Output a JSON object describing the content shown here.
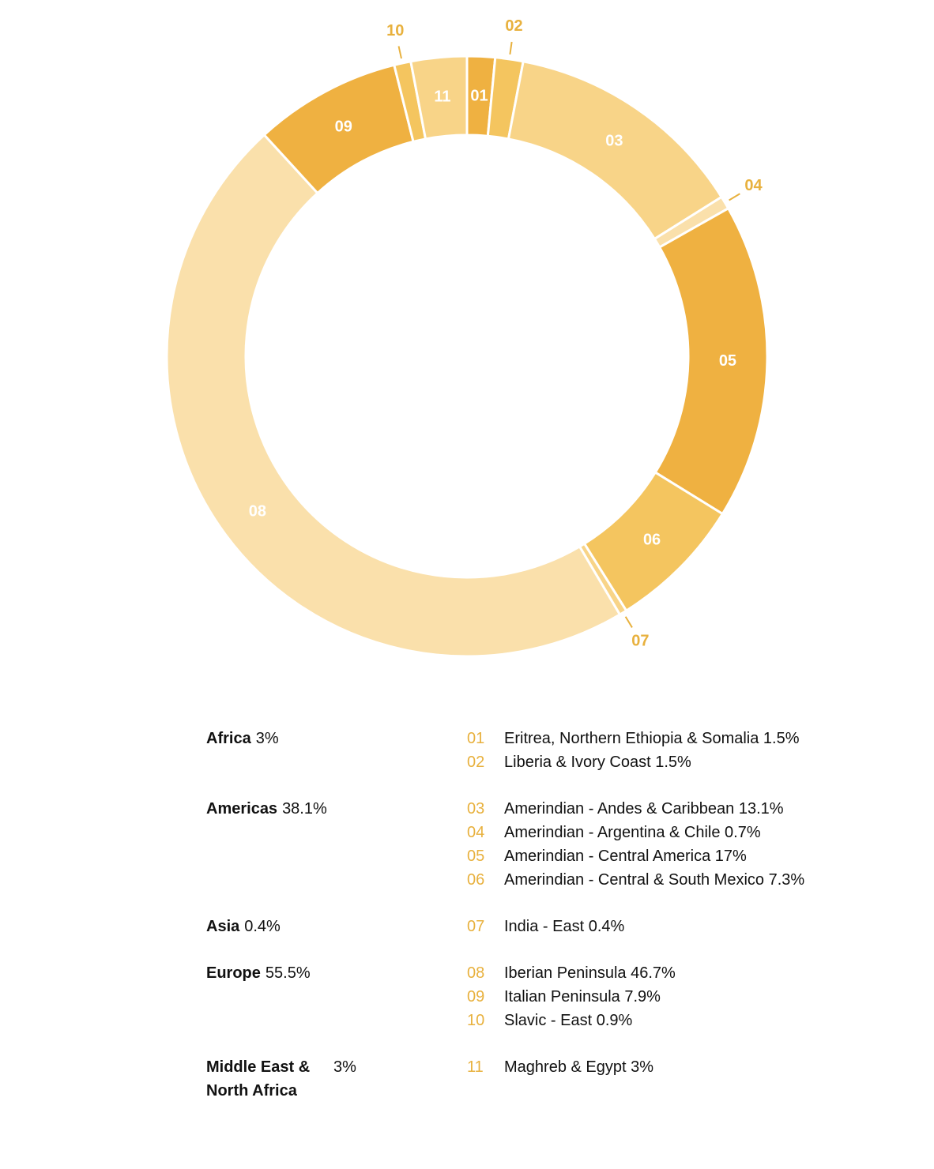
{
  "chart_data": {
    "type": "donut",
    "segments": [
      {
        "id": "01",
        "label": "Eritrea, Northern Ethiopia & Somalia",
        "value": 1.5,
        "display": "1.5%",
        "color": "#efb141"
      },
      {
        "id": "02",
        "label": "Liberia & Ivory Coast",
        "value": 1.5,
        "display": "1.5%",
        "color": "#f4c55f"
      },
      {
        "id": "03",
        "label": "Amerindian - Andes & Caribbean",
        "value": 13.1,
        "display": "13.1%",
        "color": "#f8d488"
      },
      {
        "id": "04",
        "label": "Amerindian - Argentina & Chile",
        "value": 0.7,
        "display": "0.7%",
        "color": "#fae0ab"
      },
      {
        "id": "05",
        "label": "Amerindian - Central America",
        "value": 17,
        "display": "17%",
        "color": "#efb141"
      },
      {
        "id": "06",
        "label": "Amerindian - Central & South Mexico",
        "value": 7.3,
        "display": "7.3%",
        "color": "#f4c55f"
      },
      {
        "id": "07",
        "label": "India - East",
        "value": 0.4,
        "display": "0.4%",
        "color": "#f8d488"
      },
      {
        "id": "08",
        "label": "Iberian Peninsula",
        "value": 46.7,
        "display": "46.7%",
        "color": "#fae0ab"
      },
      {
        "id": "09",
        "label": "Italian Peninsula",
        "value": 7.9,
        "display": "7.9%",
        "color": "#efb141"
      },
      {
        "id": "10",
        "label": "Slavic - East",
        "value": 0.9,
        "display": "0.9%",
        "color": "#f4c55f"
      },
      {
        "id": "11",
        "label": "Maghreb & Egypt",
        "value": 3,
        "display": "3%",
        "color": "#f8d488"
      }
    ],
    "external_labels": [
      "02",
      "04",
      "07",
      "10"
    ]
  },
  "colors": {
    "number_accent": "#e8b13e",
    "inside_label": "#ffffff",
    "separator": "#ffffff",
    "text": "#111111"
  },
  "legend": {
    "groups": [
      {
        "region": "Africa",
        "pct": "3%",
        "items": [
          {
            "num": "01",
            "label": "Eritrea, Northern Ethiopia & Somalia 1.5%"
          },
          {
            "num": "02",
            "label": "Liberia & Ivory Coast 1.5%"
          }
        ]
      },
      {
        "region": "Americas",
        "pct": "38.1%",
        "items": [
          {
            "num": "03",
            "label": "Amerindian - Andes & Caribbean 13.1%"
          },
          {
            "num": "04",
            "label": "Amerindian - Argentina & Chile 0.7%"
          },
          {
            "num": "05",
            "label": "Amerindian - Central America 17%"
          },
          {
            "num": "06",
            "label": "Amerindian - Central & South Mexico 7.3%"
          }
        ]
      },
      {
        "region": "Asia",
        "pct": "0.4%",
        "items": [
          {
            "num": "07",
            "label": "India - East 0.4%"
          }
        ]
      },
      {
        "region": "Europe",
        "pct": "55.5%",
        "items": [
          {
            "num": "08",
            "label": "Iberian Peninsula 46.7%"
          },
          {
            "num": "09",
            "label": "Italian Peninsula 7.9%"
          },
          {
            "num": "10",
            "label": "Slavic - East 0.9%"
          }
        ]
      },
      {
        "region": "Middle East & North Africa",
        "pct": "3%",
        "items": [
          {
            "num": "11",
            "label": "Maghreb & Egypt 3%"
          }
        ]
      }
    ]
  }
}
